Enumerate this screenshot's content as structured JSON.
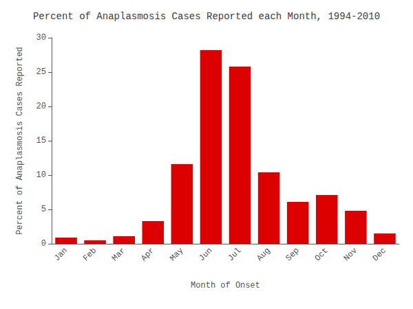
{
  "chart_data": {
    "type": "bar",
    "title": "Percent of Anaplasmosis Cases Reported each Month, 1994-2010",
    "xlabel": "Month of Onset",
    "ylabel": "Percent of Anaplasmosis Cases Reported",
    "categories": [
      "Jan",
      "Feb",
      "Mar",
      "Apr",
      "May",
      "Jun",
      "Jul",
      "Aug",
      "Sep",
      "Oct",
      "Nov",
      "Dec"
    ],
    "values": [
      0.9,
      0.5,
      1.1,
      3.3,
      11.6,
      28.2,
      25.8,
      10.4,
      6.1,
      7.1,
      4.8,
      1.5
    ],
    "color": "#DD0000",
    "ylim": [
      0,
      30
    ],
    "yticks": [
      0,
      5,
      10,
      15,
      20,
      25,
      30
    ],
    "grid": false
  }
}
